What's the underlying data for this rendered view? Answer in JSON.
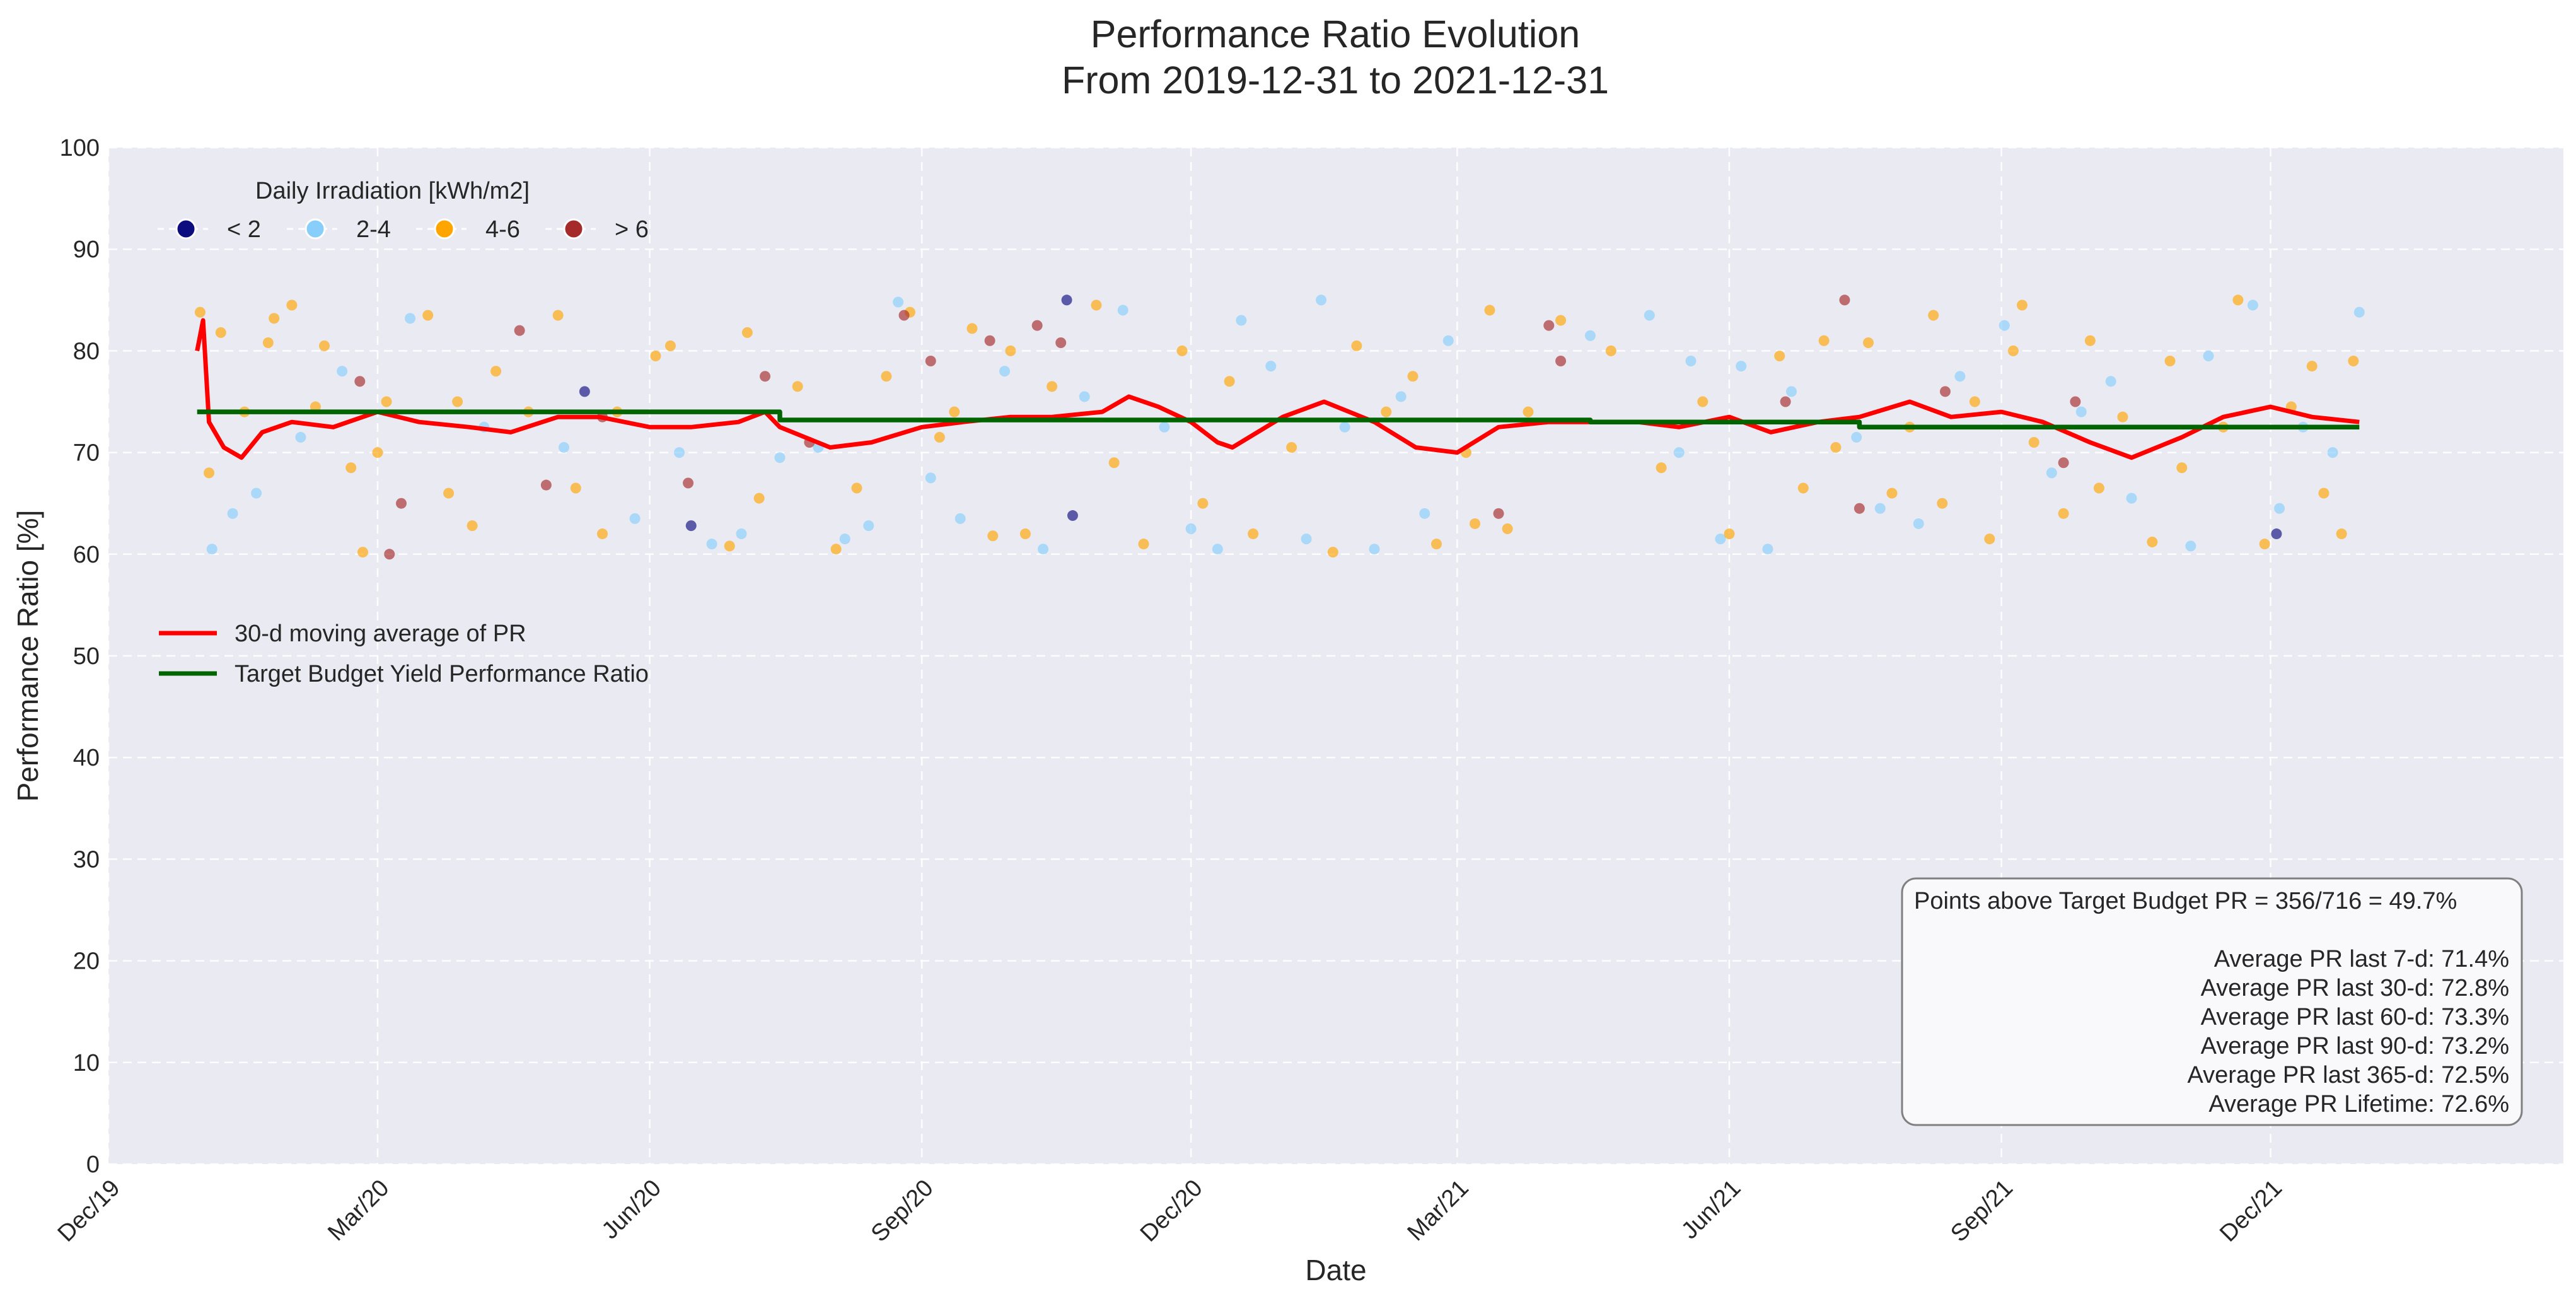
{
  "chart_data": {
    "type": "scatter",
    "title": [
      "Performance Ratio Evolution",
      "From 2019-12-31 to 2021-12-31"
    ],
    "xlabel": "Date",
    "ylabel": "Performance Ratio [%]",
    "ylim": [
      0,
      100
    ],
    "xlim": [
      "2019-12-01",
      "2022-03-10"
    ],
    "y_ticks": [
      0,
      10,
      20,
      30,
      40,
      50,
      60,
      70,
      80,
      90,
      100
    ],
    "x_ticks": [
      {
        "date": "2019-12-01",
        "label": "Dec/19"
      },
      {
        "date": "2020-03-01",
        "label": "Mar/20"
      },
      {
        "date": "2020-06-01",
        "label": "Jun/20"
      },
      {
        "date": "2020-09-01",
        "label": "Sep/20"
      },
      {
        "date": "2020-12-01",
        "label": "Dec/20"
      },
      {
        "date": "2021-03-01",
        "label": "Mar/21"
      },
      {
        "date": "2021-06-01",
        "label": "Jun/21"
      },
      {
        "date": "2021-09-01",
        "label": "Sep/21"
      },
      {
        "date": "2021-12-01",
        "label": "Dec/21"
      }
    ],
    "grid": true,
    "legend": {
      "irradiation_title": "Daily Irradiation [kWh/m2]",
      "irradiation_position": "top-left",
      "lines_position": "center-left"
    },
    "series": [
      {
        "name": "< 2",
        "kind": "scatter",
        "color": "#0d0d80",
        "points": [
          [
            "2020-05-10",
            76.0
          ],
          [
            "2020-06-15",
            62.8
          ],
          [
            "2020-10-20",
            85.0
          ],
          [
            "2020-10-22",
            63.8
          ],
          [
            "2021-12-03",
            62.0
          ]
        ]
      },
      {
        "name": "2-4",
        "kind": "scatter",
        "color": "#87cefa",
        "points": [
          [
            "2020-01-05",
            60.5
          ],
          [
            "2020-01-12",
            64.0
          ],
          [
            "2020-01-20",
            66.0
          ],
          [
            "2020-02-04",
            71.5
          ],
          [
            "2020-02-18",
            78.0
          ],
          [
            "2020-03-12",
            83.2
          ],
          [
            "2020-04-06",
            72.5
          ],
          [
            "2020-05-03",
            70.5
          ],
          [
            "2020-05-27",
            63.5
          ],
          [
            "2020-06-11",
            70.0
          ],
          [
            "2020-06-22",
            61.0
          ],
          [
            "2020-07-02",
            62.0
          ],
          [
            "2020-07-15",
            69.5
          ],
          [
            "2020-07-28",
            70.5
          ],
          [
            "2020-08-06",
            61.5
          ],
          [
            "2020-08-14",
            62.8
          ],
          [
            "2020-08-24",
            84.8
          ],
          [
            "2020-09-04",
            67.5
          ],
          [
            "2020-09-14",
            63.5
          ],
          [
            "2020-09-29",
            78.0
          ],
          [
            "2020-10-12",
            60.5
          ],
          [
            "2020-10-26",
            75.5
          ],
          [
            "2020-11-08",
            84.0
          ],
          [
            "2020-11-22",
            72.5
          ],
          [
            "2020-12-01",
            62.5
          ],
          [
            "2020-12-10",
            60.5
          ],
          [
            "2020-12-18",
            83.0
          ],
          [
            "2020-12-28",
            78.5
          ],
          [
            "2021-01-09",
            61.5
          ],
          [
            "2021-01-14",
            85.0
          ],
          [
            "2021-01-22",
            72.5
          ],
          [
            "2021-02-01",
            60.5
          ],
          [
            "2021-02-10",
            75.5
          ],
          [
            "2021-02-18",
            64.0
          ],
          [
            "2021-02-26",
            81.0
          ],
          [
            "2021-04-15",
            81.5
          ],
          [
            "2021-05-05",
            83.5
          ],
          [
            "2021-05-15",
            70.0
          ],
          [
            "2021-05-19",
            79.0
          ],
          [
            "2021-05-29",
            61.5
          ],
          [
            "2021-06-05",
            78.5
          ],
          [
            "2021-06-14",
            60.5
          ],
          [
            "2021-06-22",
            76.0
          ],
          [
            "2021-07-14",
            71.5
          ],
          [
            "2021-07-22",
            64.5
          ],
          [
            "2021-08-04",
            63.0
          ],
          [
            "2021-08-18",
            77.5
          ],
          [
            "2021-09-02",
            82.5
          ],
          [
            "2021-09-18",
            68.0
          ],
          [
            "2021-09-28",
            74.0
          ],
          [
            "2021-10-08",
            77.0
          ],
          [
            "2021-10-15",
            65.5
          ],
          [
            "2021-11-04",
            60.8
          ],
          [
            "2021-11-10",
            79.5
          ],
          [
            "2021-11-25",
            84.5
          ],
          [
            "2021-12-04",
            64.5
          ],
          [
            "2021-12-12",
            72.5
          ],
          [
            "2021-12-22",
            70.0
          ],
          [
            "2021-12-31",
            83.8
          ]
        ]
      },
      {
        "name": "4-6",
        "kind": "scatter",
        "color": "#ffa500",
        "points": [
          [
            "2020-01-01",
            83.8
          ],
          [
            "2020-01-04",
            68.0
          ],
          [
            "2020-01-08",
            81.8
          ],
          [
            "2020-01-16",
            74.0
          ],
          [
            "2020-01-24",
            80.8
          ],
          [
            "2020-01-26",
            83.2
          ],
          [
            "2020-02-01",
            84.5
          ],
          [
            "2020-02-09",
            74.5
          ],
          [
            "2020-02-12",
            80.5
          ],
          [
            "2020-02-21",
            68.5
          ],
          [
            "2020-02-25",
            60.2
          ],
          [
            "2020-03-01",
            70.0
          ],
          [
            "2020-03-04",
            75.0
          ],
          [
            "2020-03-18",
            83.5
          ],
          [
            "2020-03-25",
            66.0
          ],
          [
            "2020-03-28",
            75.0
          ],
          [
            "2020-04-02",
            62.8
          ],
          [
            "2020-04-10",
            78.0
          ],
          [
            "2020-04-21",
            74.0
          ],
          [
            "2020-05-01",
            83.5
          ],
          [
            "2020-05-07",
            66.5
          ],
          [
            "2020-05-16",
            62.0
          ],
          [
            "2020-05-21",
            74.0
          ],
          [
            "2020-06-03",
            79.5
          ],
          [
            "2020-06-08",
            80.5
          ],
          [
            "2020-06-28",
            60.8
          ],
          [
            "2020-07-04",
            81.8
          ],
          [
            "2020-07-08",
            65.5
          ],
          [
            "2020-07-21",
            76.5
          ],
          [
            "2020-08-03",
            60.5
          ],
          [
            "2020-08-10",
            66.5
          ],
          [
            "2020-08-20",
            77.5
          ],
          [
            "2020-08-28",
            83.8
          ],
          [
            "2020-09-07",
            71.5
          ],
          [
            "2020-09-12",
            74.0
          ],
          [
            "2020-09-18",
            82.2
          ],
          [
            "2020-09-25",
            61.8
          ],
          [
            "2020-10-01",
            80.0
          ],
          [
            "2020-10-06",
            62.0
          ],
          [
            "2020-10-15",
            76.5
          ],
          [
            "2020-10-30",
            84.5
          ],
          [
            "2020-11-05",
            69.0
          ],
          [
            "2020-11-15",
            61.0
          ],
          [
            "2020-11-28",
            80.0
          ],
          [
            "2020-12-05",
            65.0
          ],
          [
            "2020-12-14",
            77.0
          ],
          [
            "2020-12-22",
            62.0
          ],
          [
            "2021-01-04",
            70.5
          ],
          [
            "2021-01-18",
            60.2
          ],
          [
            "2021-01-26",
            80.5
          ],
          [
            "2021-02-05",
            74.0
          ],
          [
            "2021-02-14",
            77.5
          ],
          [
            "2021-02-22",
            61.0
          ],
          [
            "2021-03-04",
            70.0
          ],
          [
            "2021-03-07",
            63.0
          ],
          [
            "2021-03-12",
            84.0
          ],
          [
            "2021-03-18",
            62.5
          ],
          [
            "2021-03-25",
            74.0
          ],
          [
            "2021-04-05",
            83.0
          ],
          [
            "2021-04-22",
            80.0
          ],
          [
            "2021-05-09",
            68.5
          ],
          [
            "2021-05-23",
            75.0
          ],
          [
            "2021-06-01",
            62.0
          ],
          [
            "2021-06-18",
            79.5
          ],
          [
            "2021-06-26",
            66.5
          ],
          [
            "2021-07-03",
            81.0
          ],
          [
            "2021-07-07",
            70.5
          ],
          [
            "2021-07-18",
            80.8
          ],
          [
            "2021-07-26",
            66.0
          ],
          [
            "2021-08-01",
            72.5
          ],
          [
            "2021-08-09",
            83.5
          ],
          [
            "2021-08-12",
            65.0
          ],
          [
            "2021-08-23",
            75.0
          ],
          [
            "2021-08-28",
            61.5
          ],
          [
            "2021-09-05",
            80.0
          ],
          [
            "2021-09-08",
            84.5
          ],
          [
            "2021-09-12",
            71.0
          ],
          [
            "2021-09-22",
            64.0
          ],
          [
            "2021-10-01",
            81.0
          ],
          [
            "2021-10-04",
            66.5
          ],
          [
            "2021-10-12",
            73.5
          ],
          [
            "2021-10-22",
            61.2
          ],
          [
            "2021-10-28",
            79.0
          ],
          [
            "2021-11-01",
            68.5
          ],
          [
            "2021-11-15",
            72.5
          ],
          [
            "2021-11-20",
            85.0
          ],
          [
            "2021-11-29",
            61.0
          ],
          [
            "2021-12-08",
            74.5
          ],
          [
            "2021-12-15",
            78.5
          ],
          [
            "2021-12-19",
            66.0
          ],
          [
            "2021-12-25",
            62.0
          ],
          [
            "2021-12-29",
            79.0
          ]
        ]
      },
      {
        "name": "> 6",
        "kind": "scatter",
        "color": "#a52a2a",
        "points": [
          [
            "2020-02-24",
            77.0
          ],
          [
            "2020-03-05",
            60.0
          ],
          [
            "2020-03-09",
            65.0
          ],
          [
            "2020-04-18",
            82.0
          ],
          [
            "2020-04-27",
            66.8
          ],
          [
            "2020-05-16",
            73.5
          ],
          [
            "2020-06-14",
            67.0
          ],
          [
            "2020-07-10",
            77.5
          ],
          [
            "2020-07-25",
            71.0
          ],
          [
            "2020-08-26",
            83.5
          ],
          [
            "2020-09-04",
            79.0
          ],
          [
            "2020-09-24",
            81.0
          ],
          [
            "2020-10-10",
            82.5
          ],
          [
            "2020-10-18",
            80.8
          ],
          [
            "2021-03-15",
            64.0
          ],
          [
            "2021-04-01",
            82.5
          ],
          [
            "2021-04-05",
            79.0
          ],
          [
            "2021-06-20",
            75.0
          ],
          [
            "2021-07-10",
            85.0
          ],
          [
            "2021-07-15",
            64.5
          ],
          [
            "2021-08-13",
            76.0
          ],
          [
            "2021-09-22",
            69.0
          ],
          [
            "2021-09-26",
            75.0
          ]
        ]
      },
      {
        "name": "30-d moving average of PR",
        "kind": "line",
        "color": "#ff0000",
        "points": [
          [
            "2019-12-31",
            80.0
          ],
          [
            "2020-01-02",
            83.0
          ],
          [
            "2020-01-04",
            73.0
          ],
          [
            "2020-01-09",
            70.5
          ],
          [
            "2020-01-15",
            69.5
          ],
          [
            "2020-01-22",
            72.0
          ],
          [
            "2020-02-01",
            73.0
          ],
          [
            "2020-02-15",
            72.5
          ],
          [
            "2020-03-01",
            74.0
          ],
          [
            "2020-03-15",
            73.0
          ],
          [
            "2020-04-01",
            72.5
          ],
          [
            "2020-04-15",
            72.0
          ],
          [
            "2020-05-01",
            73.5
          ],
          [
            "2020-05-15",
            73.5
          ],
          [
            "2020-06-01",
            72.5
          ],
          [
            "2020-06-15",
            72.5
          ],
          [
            "2020-07-01",
            73.0
          ],
          [
            "2020-07-10",
            74.0
          ],
          [
            "2020-07-15",
            72.5
          ],
          [
            "2020-08-01",
            70.5
          ],
          [
            "2020-08-15",
            71.0
          ],
          [
            "2020-09-01",
            72.5
          ],
          [
            "2020-09-15",
            73.0
          ],
          [
            "2020-10-01",
            73.5
          ],
          [
            "2020-10-15",
            73.5
          ],
          [
            "2020-11-01",
            74.0
          ],
          [
            "2020-11-10",
            75.5
          ],
          [
            "2020-11-20",
            74.5
          ],
          [
            "2020-12-01",
            73.0
          ],
          [
            "2020-12-10",
            71.0
          ],
          [
            "2020-12-15",
            70.5
          ],
          [
            "2021-01-01",
            73.5
          ],
          [
            "2021-01-15",
            75.0
          ],
          [
            "2021-02-01",
            73.0
          ],
          [
            "2021-02-15",
            70.5
          ],
          [
            "2021-03-01",
            70.0
          ],
          [
            "2021-03-15",
            72.5
          ],
          [
            "2021-04-01",
            73.0
          ],
          [
            "2021-04-15",
            73.0
          ],
          [
            "2021-05-01",
            73.0
          ],
          [
            "2021-05-15",
            72.5
          ],
          [
            "2021-06-01",
            73.5
          ],
          [
            "2021-06-15",
            72.0
          ],
          [
            "2021-07-01",
            73.0
          ],
          [
            "2021-07-15",
            73.5
          ],
          [
            "2021-08-01",
            75.0
          ],
          [
            "2021-08-15",
            73.5
          ],
          [
            "2021-09-01",
            74.0
          ],
          [
            "2021-09-15",
            73.0
          ],
          [
            "2021-10-01",
            71.0
          ],
          [
            "2021-10-15",
            69.5
          ],
          [
            "2021-11-01",
            71.5
          ],
          [
            "2021-11-15",
            73.5
          ],
          [
            "2021-12-01",
            74.5
          ],
          [
            "2021-12-15",
            73.5
          ],
          [
            "2021-12-31",
            73.0
          ]
        ]
      },
      {
        "name": "Target Budget Yield Performance Ratio",
        "kind": "step",
        "color": "#006400",
        "points": [
          [
            "2019-12-31",
            74.0
          ],
          [
            "2020-07-15",
            74.0
          ],
          [
            "2020-07-15",
            73.2
          ],
          [
            "2021-04-15",
            73.2
          ],
          [
            "2021-04-15",
            73.0
          ],
          [
            "2021-07-15",
            73.0
          ],
          [
            "2021-07-15",
            72.5
          ],
          [
            "2021-12-31",
            72.5
          ]
        ]
      }
    ],
    "stats_box": {
      "position": "bottom-right",
      "lines": [
        "Points above Target Budget PR = 356/716 = 49.7%",
        "",
        "Average PR last 7-d: 71.4%",
        "Average PR last 30-d: 72.8%",
        "Average PR last 60-d: 73.3%",
        "Average PR last 90-d: 73.2%",
        "Average PR last 365-d: 72.5%",
        "Average PR Lifetime: 72.6%"
      ]
    }
  }
}
